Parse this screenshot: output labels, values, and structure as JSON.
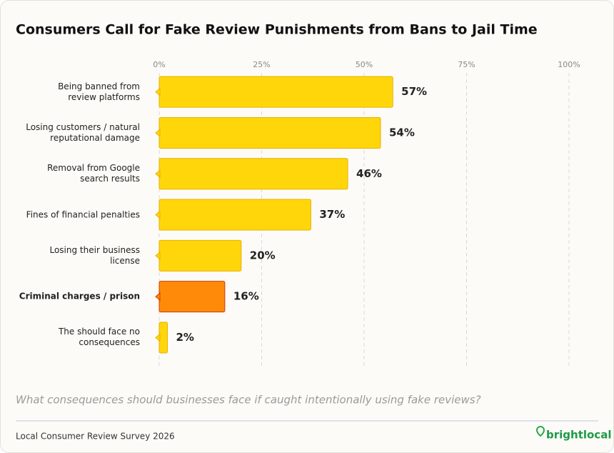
{
  "chart_data": {
    "type": "bar",
    "orientation": "horizontal",
    "title": "Consumers Call for Fake Review Punishments from Bans to Jail Time",
    "categories": [
      "Being banned from\nreview platforms",
      "Losing customers / natural\nreputational damage",
      "Removal from Google\nsearch results",
      "Fines of financial penalties",
      "Losing their business\nlicense",
      "Criminal charges / prison",
      "The should face no\nconsequences"
    ],
    "values": [
      57,
      54,
      46,
      37,
      20,
      16,
      2
    ],
    "value_labels": [
      "57%",
      "54%",
      "46%",
      "37%",
      "20%",
      "16%",
      "2%"
    ],
    "colors": [
      "#ffd60a",
      "#ffd60a",
      "#ffd60a",
      "#ffd60a",
      "#ffd60a",
      "#ff8a0a",
      "#ffd60a"
    ],
    "emphasis_category": 5,
    "xlim": [
      0,
      100
    ],
    "xticks": [
      {
        "value": 0,
        "label": "0%"
      },
      {
        "value": 25,
        "label": "25%"
      },
      {
        "value": 50,
        "label": "50%"
      },
      {
        "value": 75,
        "label": "75%"
      },
      {
        "value": 100,
        "label": "100%"
      }
    ],
    "grid": true,
    "subtitle": "What consequences should businesses face if caught intentionally using fake reviews?",
    "source": "Local Consumer Review Survey 2026",
    "logo": "brightlocal"
  }
}
